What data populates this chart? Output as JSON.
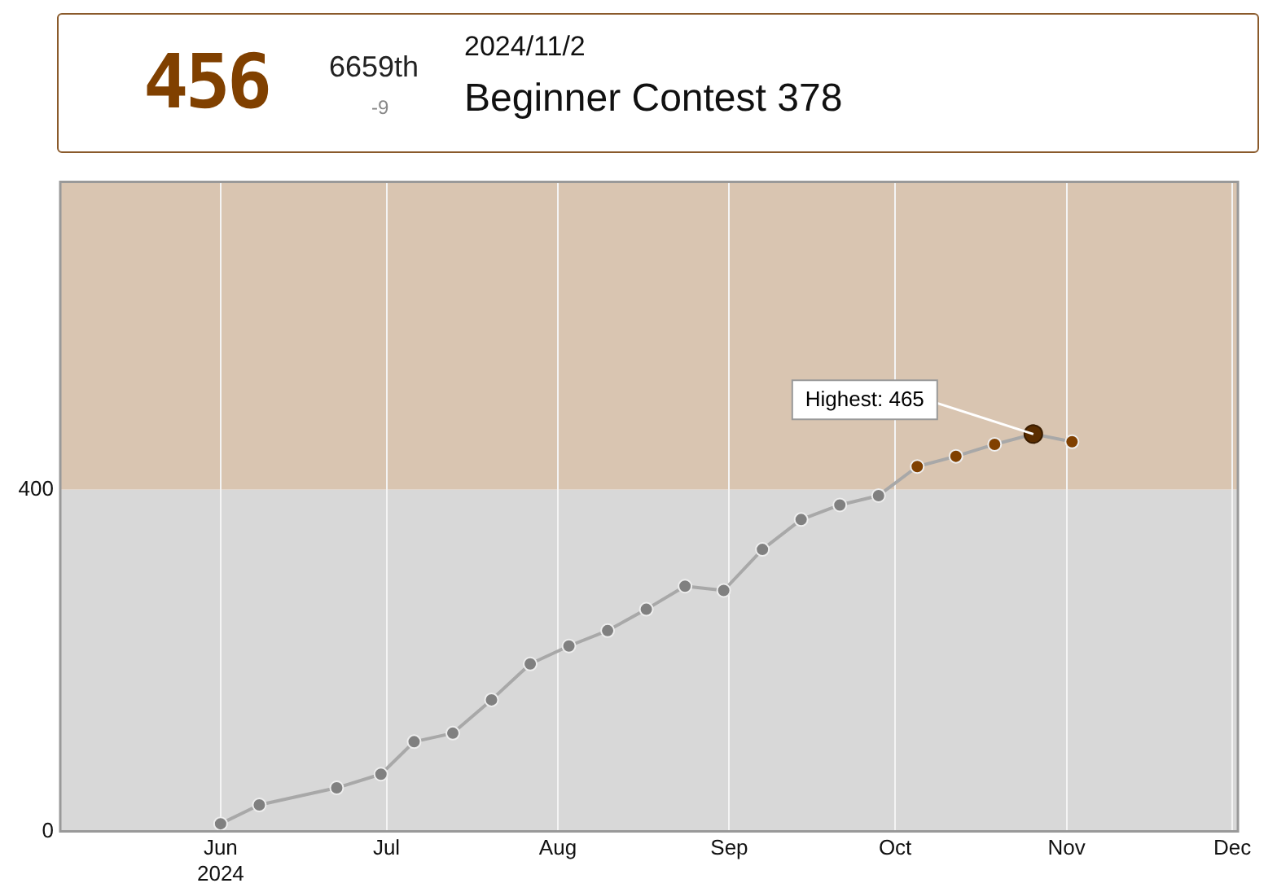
{
  "chart_data": {
    "type": "line",
    "title": "Beginner Contest 378",
    "subtitle": "2024/11/2",
    "annotations": [
      "456",
      "6659th",
      "-9",
      {
        "text": "Highest: 465",
        "x": "2024-10-26",
        "y": 465
      }
    ],
    "x": [
      "2024-06-01",
      "2024-06-08",
      "2024-06-22",
      "2024-06-30",
      "2024-07-06",
      "2024-07-13",
      "2024-07-20",
      "2024-07-27",
      "2024-08-03",
      "2024-08-10",
      "2024-08-17",
      "2024-08-24",
      "2024-08-31",
      "2024-09-07",
      "2024-09-14",
      "2024-09-21",
      "2024-09-28",
      "2024-10-05",
      "2024-10-12",
      "2024-10-19",
      "2024-10-26",
      "2024-11-02"
    ],
    "series": [
      {
        "color": "#a8a8a8",
        "values": [
          9,
          31,
          51,
          67,
          105,
          115,
          154,
          196,
          217,
          235,
          260,
          287,
          282,
          330,
          365,
          382,
          393,
          427,
          439,
          453,
          465,
          456
        ],
        "colors": [
          "#808080",
          "#808080",
          "#808080",
          "#808080",
          "#808080",
          "#808080",
          "#808080",
          "#808080",
          "#808080",
          "#808080",
          "#808080",
          "#808080",
          "#808080",
          "#808080",
          "#808080",
          "#808080",
          "#808080",
          "#804000",
          "#804000",
          "#804000",
          "#804000",
          "#804000"
        ]
      }
    ],
    "xlim": [
      "2024-05-03",
      "2024-12-02"
    ],
    "xticks": [
      {
        "value": "2024-06-01",
        "label": "Jun\n2024"
      },
      {
        "value": "2024-07-01",
        "label": "Jul"
      },
      {
        "value": "2024-08-01",
        "label": "Aug"
      },
      {
        "value": "2024-09-01",
        "label": "Sep"
      },
      {
        "value": "2024-10-01",
        "label": "Oct"
      },
      {
        "value": "2024-11-01",
        "label": "Nov"
      },
      {
        "value": "2024-12-01",
        "label": "Dec"
      }
    ],
    "ylim": [
      0,
      760
    ],
    "yticks": [
      0,
      400
    ],
    "bands": [
      {
        "axis": "y",
        "from": 0,
        "to": 400,
        "color": "#d8d8d8"
      },
      {
        "axis": "y",
        "from": 400,
        "to": 760,
        "color": "#d9c5b1"
      }
    ],
    "grid": "x",
    "legend": false,
    "marker": "circle",
    "line_style": "solid"
  }
}
